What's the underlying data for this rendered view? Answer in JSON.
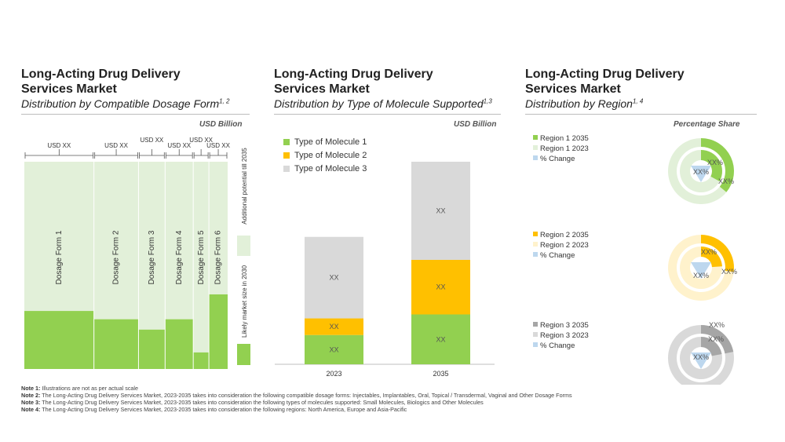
{
  "panels": [
    {
      "title": "Long-Acting Drug Delivery\nServices Market",
      "subtitle": "Distribution by Compatible Dosage Form",
      "subtitle_sup": "1, 2"
    },
    {
      "title": "Long-Acting Drug Delivery\nServices Market",
      "subtitle": "Distribution by Type of Molecule Supported",
      "subtitle_sup": "1,3"
    },
    {
      "title": "Long-Acting Drug Delivery\nServices Market",
      "subtitle": "Distribution by Region",
      "subtitle_sup": "1, 4"
    }
  ],
  "units": {
    "left": "USD Billion",
    "middle": "USD Billion",
    "right": "Percentage  Share"
  },
  "colors": {
    "green_dark": "#92d050",
    "green_light": "#e2f0d9",
    "yellow": "#ffc000",
    "yellow_light": "#fff2cc",
    "grey_dark": "#a6a6a6",
    "grey_light": "#d9d9d9",
    "blue_light": "#bdd7ee"
  },
  "chart_data": [
    {
      "type": "bar",
      "variant": "marimekko",
      "title": "Distribution by Compatible Dosage Form",
      "ylabel": "USD Billion",
      "categories": [
        "Dosage Form 1",
        "Dosage Form 2",
        "Dosage Form 3",
        "Dosage Form 4",
        "Dosage Form 5",
        "Dosage Form 6"
      ],
      "widths": [
        89,
        57,
        34,
        36,
        20,
        24
      ],
      "series": [
        {
          "name": "Likely market size in 2030",
          "values": [
            28,
            24,
            19,
            24,
            8,
            36
          ]
        },
        {
          "name": "Additional potential till 2035",
          "values": [
            72,
            76,
            81,
            76,
            92,
            64
          ]
        }
      ],
      "top_labels": [
        "USD XX",
        "USD XX",
        "USD XX",
        "USD XX",
        "USD XX",
        "USD XX"
      ],
      "ylim": [
        0,
        100
      ]
    },
    {
      "type": "bar",
      "variant": "stacked",
      "title": "Distribution by Type of Molecule Supported",
      "ylabel": "USD Billion",
      "categories": [
        "2023",
        "2035"
      ],
      "series": [
        {
          "name": "Type of Molecule 1",
          "values": [
            37,
            63
          ],
          "labels": [
            "XX",
            "XX"
          ]
        },
        {
          "name": "Type of Molecule 2",
          "values": [
            21,
            69
          ],
          "labels": [
            "XX",
            "XX"
          ]
        },
        {
          "name": "Type of Molecule 3",
          "values": [
            103,
            124
          ],
          "labels": [
            "XX",
            "XX"
          ]
        }
      ],
      "ylim": [
        0,
        256
      ],
      "legend_position": "top-left"
    },
    {
      "type": "pie",
      "variant": "double-doughnut",
      "title": "Distribution by Region",
      "ylabel": "Percentage  Share",
      "regions": [
        {
          "legend": [
            "Region 1 2035",
            "Region 1 2023",
            "% Change"
          ],
          "outer_share": 0.36,
          "inner_share": 0.33,
          "labels": [
            "XX%",
            "XX%",
            "XX%"
          ],
          "color": "#92d050",
          "color_light": "#e2f0d9"
        },
        {
          "legend": [
            "Region 2 2035",
            "Region 2 2023",
            "% Change"
          ],
          "outer_share": 0.27,
          "inner_share": 0.24,
          "labels": [
            "XX%",
            "XX%",
            "XX%"
          ],
          "color": "#ffc000",
          "color_light": "#fff2cc"
        },
        {
          "legend": [
            "Region 3 2035",
            "Region 3 2023",
            "% Change"
          ],
          "outer_share": 0.22,
          "inner_share": 0.22,
          "labels": [
            "XX%",
            "XX%",
            "XX%"
          ],
          "color": "#a6a6a6",
          "color_light": "#d9d9d9"
        }
      ]
    }
  ],
  "notes": [
    {
      "label": "Note 1:",
      "text": " Illustrations are not as per actual scale"
    },
    {
      "label": "Note 2:",
      "text": " The Long-Acting Drug Delivery Services Market, 2023-2035 takes into  consideration the following compatible dosage forms: Injectables, Implantables,  Oral, Topical / Transdermal, Vaginal and Other Dosage Forms"
    },
    {
      "label": "Note 3:",
      "text": " The Long-Acting Drug Delivery Services Market, 2023-2035 takes into  consideration the following types of molecules supported: Small Molecules, Biologics and Other Molecules"
    },
    {
      "label": "Note 4:",
      "text": " The Long-Acting Drug Delivery Services Market, 2023-2035 takes into  consideration the following regions: North America, Europe and Asia-Pacific"
    }
  ]
}
